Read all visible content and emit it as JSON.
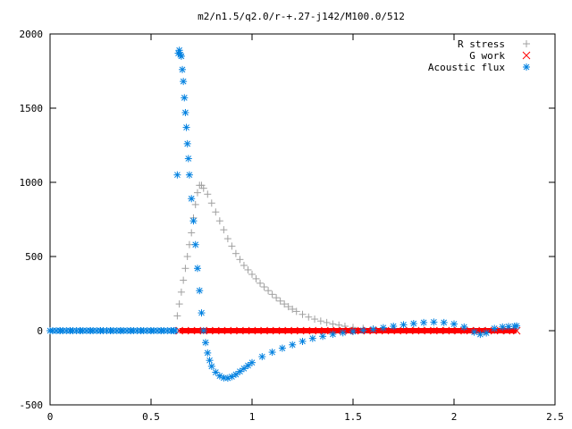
{
  "chart_data": {
    "type": "scatter",
    "title": "m2/n1.5/q2.0/r-+.27-j142/M100.0/512",
    "xlabel": "",
    "ylabel": "",
    "xlim": [
      0,
      2.5
    ],
    "ylim": [
      -500,
      2000
    ],
    "x_ticks": [
      0,
      0.5,
      1,
      1.5,
      2,
      2.5
    ],
    "x_tick_labels": [
      "0",
      "0.5",
      "1",
      "1.5",
      "2",
      "2.5"
    ],
    "y_ticks": [
      -500,
      0,
      500,
      1000,
      1500,
      2000
    ],
    "y_tick_labels": [
      "-500",
      "0",
      "500",
      "1000",
      "1500",
      "2000"
    ],
    "grid": false,
    "legend_position": "top-right",
    "series": [
      {
        "name": "R stress",
        "marker": "plus",
        "color": "#a0a0a0",
        "x": [
          0.63,
          0.64,
          0.65,
          0.66,
          0.67,
          0.68,
          0.69,
          0.7,
          0.71,
          0.72,
          0.73,
          0.74,
          0.75,
          0.76,
          0.78,
          0.8,
          0.82,
          0.84,
          0.86,
          0.88,
          0.9,
          0.92,
          0.94,
          0.96,
          0.98,
          1.0,
          1.02,
          1.04,
          1.06,
          1.08,
          1.1,
          1.12,
          1.14,
          1.16,
          1.18,
          1.2,
          1.22,
          1.25,
          1.28,
          1.31,
          1.34,
          1.37,
          1.4,
          1.43,
          1.46,
          1.5,
          1.55,
          1.6,
          1.65,
          1.7,
          1.75,
          1.8,
          1.85,
          1.9,
          1.95,
          2.0,
          2.05,
          2.1,
          2.15,
          2.2,
          2.25,
          2.3
        ],
        "y": [
          100,
          180,
          260,
          340,
          420,
          500,
          580,
          660,
          760,
          850,
          930,
          980,
          980,
          960,
          920,
          860,
          800,
          740,
          680,
          620,
          570,
          520,
          480,
          440,
          410,
          380,
          350,
          320,
          295,
          270,
          245,
          222,
          200,
          180,
          162,
          145,
          130,
          110,
          92,
          78,
          65,
          55,
          45,
          38,
          30,
          22,
          16,
          12,
          9,
          7,
          5,
          4,
          3,
          2,
          1,
          1,
          0,
          0,
          0,
          0,
          0,
          0
        ]
      },
      {
        "name": "G work",
        "marker": "cross",
        "color": "#ff0000",
        "x": [
          0.64,
          0.7,
          0.76,
          0.82,
          0.88,
          0.94,
          1.0,
          1.06,
          1.12,
          1.18,
          1.24,
          1.3,
          1.36,
          1.42,
          1.48,
          1.54,
          1.6,
          1.66,
          1.72,
          1.78,
          1.84,
          1.9,
          1.96,
          2.02,
          2.08,
          2.14,
          2.2,
          2.26,
          2.31
        ],
        "y": [
          0,
          0,
          0,
          0,
          0,
          0,
          0,
          0,
          0,
          0,
          0,
          0,
          0,
          0,
          0,
          0,
          0,
          0,
          0,
          0,
          0,
          0,
          0,
          0,
          0,
          0,
          0,
          0,
          0
        ]
      },
      {
        "name": "Acoustic flux",
        "marker": "star",
        "color": "#0080e0",
        "x": [
          0.0,
          0.05,
          0.1,
          0.15,
          0.2,
          0.25,
          0.3,
          0.35,
          0.4,
          0.45,
          0.5,
          0.55,
          0.6,
          0.62,
          0.63,
          0.635,
          0.64,
          0.645,
          0.65,
          0.655,
          0.66,
          0.665,
          0.67,
          0.675,
          0.68,
          0.685,
          0.69,
          0.7,
          0.71,
          0.72,
          0.73,
          0.74,
          0.75,
          0.76,
          0.77,
          0.78,
          0.79,
          0.8,
          0.82,
          0.84,
          0.86,
          0.88,
          0.9,
          0.92,
          0.94,
          0.96,
          0.98,
          1.0,
          1.05,
          1.1,
          1.15,
          1.2,
          1.25,
          1.3,
          1.35,
          1.4,
          1.45,
          1.5,
          1.55,
          1.6,
          1.65,
          1.7,
          1.75,
          1.8,
          1.85,
          1.9,
          1.95,
          2.0,
          2.05,
          2.1,
          2.13,
          2.16,
          2.2,
          2.24,
          2.27,
          2.3,
          2.31
        ],
        "y": [
          0,
          0,
          0,
          0,
          0,
          0,
          0,
          0,
          0,
          0,
          0,
          0,
          0,
          0,
          1050,
          1870,
          1890,
          1860,
          1850,
          1760,
          1680,
          1570,
          1470,
          1370,
          1260,
          1160,
          1050,
          890,
          740,
          580,
          420,
          270,
          120,
          0,
          -80,
          -150,
          -200,
          -240,
          -280,
          -305,
          -318,
          -320,
          -310,
          -295,
          -275,
          -255,
          -235,
          -215,
          -175,
          -145,
          -118,
          -95,
          -72,
          -52,
          -38,
          -24,
          -14,
          -6,
          2,
          10,
          20,
          30,
          40,
          48,
          55,
          58,
          55,
          45,
          25,
          -10,
          -25,
          -15,
          15,
          25,
          28,
          30,
          32
        ]
      }
    ]
  }
}
